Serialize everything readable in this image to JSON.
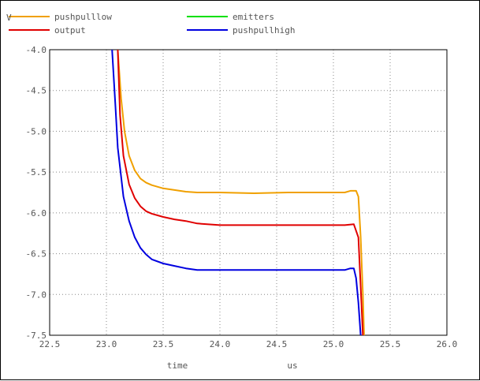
{
  "chart_data": {
    "type": "line",
    "ylabel": "V",
    "xlabel": "time",
    "xunit": "us",
    "xlim": [
      22.5,
      26.0
    ],
    "ylim": [
      -7.5,
      -4.0
    ],
    "xticks": [
      "22.5",
      "23.0",
      "23.5",
      "24.0",
      "24.5",
      "25.0",
      "25.5",
      "26.0"
    ],
    "yticks": [
      "-4.0",
      "-4.5",
      "-5.0",
      "-5.5",
      "-6.0",
      "-6.5",
      "-7.0",
      "-7.5"
    ],
    "grid": true,
    "legend_placement": "top",
    "series": [
      {
        "name": "pushpulllow",
        "color": "#f0a000",
        "x": [
          23.1,
          23.13,
          23.16,
          23.2,
          23.25,
          23.3,
          23.35,
          23.4,
          23.5,
          23.6,
          23.7,
          23.8,
          24.0,
          24.3,
          24.6,
          24.9,
          25.1,
          25.15,
          25.2,
          25.22,
          25.24,
          25.26,
          25.27
        ],
        "y": [
          -4.0,
          -4.6,
          -5.0,
          -5.3,
          -5.48,
          -5.58,
          -5.63,
          -5.66,
          -5.7,
          -5.72,
          -5.74,
          -5.75,
          -5.75,
          -5.76,
          -5.75,
          -5.75,
          -5.75,
          -5.73,
          -5.73,
          -5.8,
          -6.3,
          -7.0,
          -7.5
        ]
      },
      {
        "name": "emitters",
        "color": "#00e000",
        "x": [],
        "y": []
      },
      {
        "name": "output",
        "color": "#e00000",
        "x": [
          23.1,
          23.12,
          23.15,
          23.2,
          23.25,
          23.3,
          23.35,
          23.4,
          23.5,
          23.6,
          23.7,
          23.8,
          24.0,
          24.3,
          24.6,
          24.9,
          25.1,
          25.18,
          25.22,
          25.24,
          25.26
        ],
        "y": [
          -4.0,
          -4.8,
          -5.3,
          -5.65,
          -5.82,
          -5.92,
          -5.98,
          -6.01,
          -6.05,
          -6.08,
          -6.1,
          -6.13,
          -6.15,
          -6.15,
          -6.15,
          -6.15,
          -6.15,
          -6.14,
          -6.3,
          -6.9,
          -7.5
        ]
      },
      {
        "name": "pushpullhigh",
        "color": "#0000e0",
        "x": [
          23.05,
          23.08,
          23.1,
          23.15,
          23.2,
          23.25,
          23.3,
          23.35,
          23.4,
          23.5,
          23.6,
          23.7,
          23.8,
          24.0,
          24.3,
          24.6,
          24.9,
          25.1,
          25.15,
          25.18,
          25.2,
          25.22,
          25.24
        ],
        "y": [
          -4.0,
          -4.7,
          -5.2,
          -5.8,
          -6.1,
          -6.3,
          -6.43,
          -6.51,
          -6.57,
          -6.62,
          -6.65,
          -6.68,
          -6.7,
          -6.7,
          -6.7,
          -6.7,
          -6.7,
          -6.7,
          -6.68,
          -6.68,
          -6.8,
          -7.1,
          -7.5
        ]
      }
    ]
  }
}
